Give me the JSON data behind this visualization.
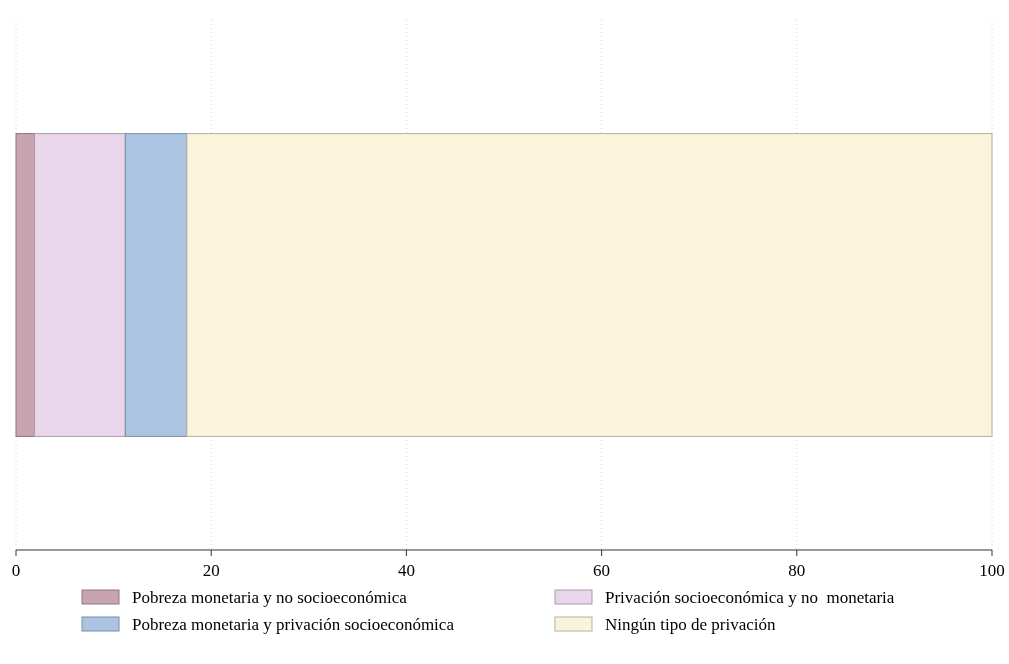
{
  "chart_data": {
    "type": "bar",
    "orientation": "horizontal",
    "stacked": true,
    "categories": [
      null
    ],
    "series": [
      {
        "name": "Pobreza monetaria y no socioeconómica",
        "color": "#c8a3b1",
        "values": [
          1.9
        ]
      },
      {
        "name": "Privación socioeconómica y no  monetaria",
        "color": "#ead6ea",
        "values": [
          9.3
        ]
      },
      {
        "name": "Pobreza monetaria y privación socioeconómica",
        "color": "#abc4e1",
        "values": [
          6.3
        ]
      },
      {
        "name": "Ningún tipo de privación",
        "color": "#fbf3dc",
        "values": [
          82.5
        ]
      }
    ],
    "xlim": [
      0,
      100
    ],
    "xticks": [
      0,
      20,
      40,
      60,
      80,
      100
    ],
    "grid": "x",
    "legend": "bottom"
  }
}
